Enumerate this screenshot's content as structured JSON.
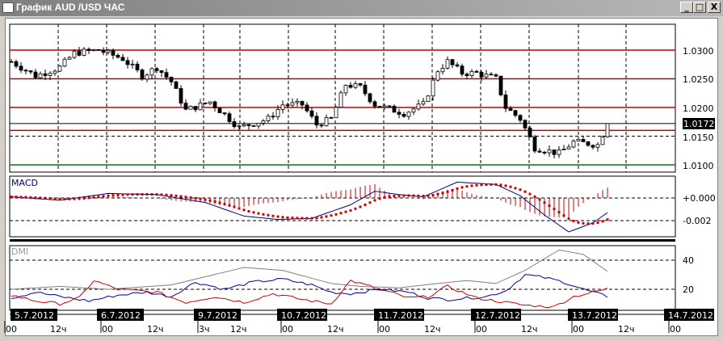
{
  "window": {
    "title": "График AUD /USD  ЧАС",
    "minimize_label": "_",
    "maximize_label": "□",
    "close_label": "X"
  },
  "price_chart": {
    "axis_labels": [
      "1.0300",
      "1.0250",
      "1.0200",
      "1.0150",
      "1.0100"
    ],
    "axis_values": [
      1.03,
      1.025,
      1.02,
      1.015,
      1.01
    ],
    "current_price": 1.0172,
    "current_price_label": "1.0172",
    "red_levels": [
      1.03,
      1.025,
      1.02,
      1.016
    ],
    "green_level": 1.01,
    "close_keypoints": [
      [
        0,
        1.028
      ],
      [
        5,
        1.0255
      ],
      [
        10,
        1.027
      ],
      [
        13,
        1.0295
      ],
      [
        18,
        1.03
      ],
      [
        23,
        1.0285
      ],
      [
        27,
        1.0255
      ],
      [
        30,
        1.027
      ],
      [
        33,
        1.0245
      ],
      [
        36,
        1.0195
      ],
      [
        41,
        1.021
      ],
      [
        47,
        1.0165
      ],
      [
        53,
        1.018
      ],
      [
        56,
        1.0205
      ],
      [
        60,
        1.0205
      ],
      [
        63,
        1.017
      ],
      [
        66,
        1.018
      ],
      [
        69,
        1.024
      ],
      [
        72,
        1.0235
      ],
      [
        75,
        1.0205
      ],
      [
        79,
        1.0195
      ],
      [
        81,
        1.019
      ],
      [
        85,
        1.0205
      ],
      [
        88,
        1.0265
      ],
      [
        90,
        1.028
      ],
      [
        93,
        1.026
      ],
      [
        96,
        1.026
      ],
      [
        100,
        1.025
      ],
      [
        102,
        1.02
      ],
      [
        105,
        1.018
      ],
      [
        108,
        1.013
      ],
      [
        113,
        1.012
      ],
      [
        116,
        1.014
      ],
      [
        121,
        1.0135
      ],
      [
        123,
        1.0172
      ]
    ],
    "colors": {
      "up_candle": "#ffffff",
      "down_candle": "#000000",
      "level": "#c00000",
      "support": "#008000"
    }
  },
  "macd": {
    "label": "MACD",
    "axis_labels": [
      "+0.000",
      "-0.002"
    ],
    "axis_values": [
      0,
      -0.002
    ],
    "macd_keypoints": [
      [
        0,
        0.0001
      ],
      [
        10,
        -0.0002
      ],
      [
        20,
        0.0004
      ],
      [
        30,
        0.0003
      ],
      [
        40,
        -0.0004
      ],
      [
        48,
        -0.0016
      ],
      [
        55,
        -0.0019
      ],
      [
        62,
        -0.0018
      ],
      [
        70,
        -0.0006
      ],
      [
        75,
        0.0006
      ],
      [
        80,
        0.0003
      ],
      [
        85,
        0.0001
      ],
      [
        92,
        0.0014
      ],
      [
        100,
        0.0012
      ],
      [
        105,
        0.0002
      ],
      [
        110,
        -0.0015
      ],
      [
        115,
        -0.003
      ],
      [
        120,
        -0.0022
      ],
      [
        124,
        -0.001
      ]
    ],
    "colors": {
      "macd": "#000080",
      "signal": "#cc0000",
      "histogram": "#cc0000"
    }
  },
  "dmi": {
    "label": "DMI",
    "axis_labels": [
      "40",
      "20"
    ],
    "axis_values": [
      40,
      20
    ],
    "adx_keypoints": [
      [
        0,
        20
      ],
      [
        10,
        22
      ],
      [
        20,
        20
      ],
      [
        33,
        23
      ],
      [
        48,
        35
      ],
      [
        56,
        33
      ],
      [
        66,
        24
      ],
      [
        72,
        22
      ],
      [
        80,
        21
      ],
      [
        88,
        24
      ],
      [
        94,
        26
      ],
      [
        100,
        24
      ],
      [
        106,
        33
      ],
      [
        113,
        47
      ],
      [
        118,
        44
      ],
      [
        124,
        30
      ]
    ],
    "plus_di_keypoints": [
      [
        0,
        14
      ],
      [
        5,
        18
      ],
      [
        10,
        15
      ],
      [
        16,
        12
      ],
      [
        22,
        16
      ],
      [
        28,
        18
      ],
      [
        33,
        15
      ],
      [
        38,
        25
      ],
      [
        44,
        20
      ],
      [
        50,
        25
      ],
      [
        56,
        27
      ],
      [
        62,
        23
      ],
      [
        66,
        18
      ],
      [
        70,
        17
      ],
      [
        76,
        20
      ],
      [
        82,
        18
      ],
      [
        86,
        14
      ],
      [
        90,
        13
      ],
      [
        98,
        15
      ],
      [
        102,
        19
      ],
      [
        106,
        30
      ],
      [
        110,
        28
      ],
      [
        114,
        25
      ],
      [
        118,
        20
      ],
      [
        124,
        14
      ]
    ],
    "minus_di_keypoints": [
      [
        0,
        16
      ],
      [
        5,
        12
      ],
      [
        10,
        10
      ],
      [
        14,
        14
      ],
      [
        17,
        26
      ],
      [
        22,
        20
      ],
      [
        30,
        18
      ],
      [
        36,
        11
      ],
      [
        42,
        15
      ],
      [
        48,
        11
      ],
      [
        54,
        17
      ],
      [
        60,
        13
      ],
      [
        66,
        10
      ],
      [
        70,
        26
      ],
      [
        76,
        20
      ],
      [
        82,
        14
      ],
      [
        86,
        15
      ],
      [
        90,
        22
      ],
      [
        96,
        14
      ],
      [
        100,
        12
      ],
      [
        106,
        9
      ],
      [
        112,
        8
      ],
      [
        116,
        15
      ],
      [
        120,
        18
      ],
      [
        124,
        21
      ]
    ],
    "colors": {
      "adx": "#808080",
      "plus_di": "#0000aa",
      "minus_di": "#cc0000"
    }
  },
  "time_axis": {
    "dates": [
      "5.7.2012",
      "6.7.2012",
      "9.7.2012",
      "10.7.2012",
      "11.7.2012",
      "12.7.2012",
      "13.7.2012",
      "14.7.2012"
    ],
    "ticks": [
      [
        "00",
        "12ч"
      ],
      [
        "00",
        "12ч"
      ],
      [
        "3ч",
        "12ч"
      ],
      [
        "00",
        "12ч"
      ],
      [
        "00",
        "12ч"
      ],
      [
        "00",
        "12ч"
      ],
      [
        "00",
        "12ч"
      ],
      [
        "00"
      ]
    ]
  }
}
